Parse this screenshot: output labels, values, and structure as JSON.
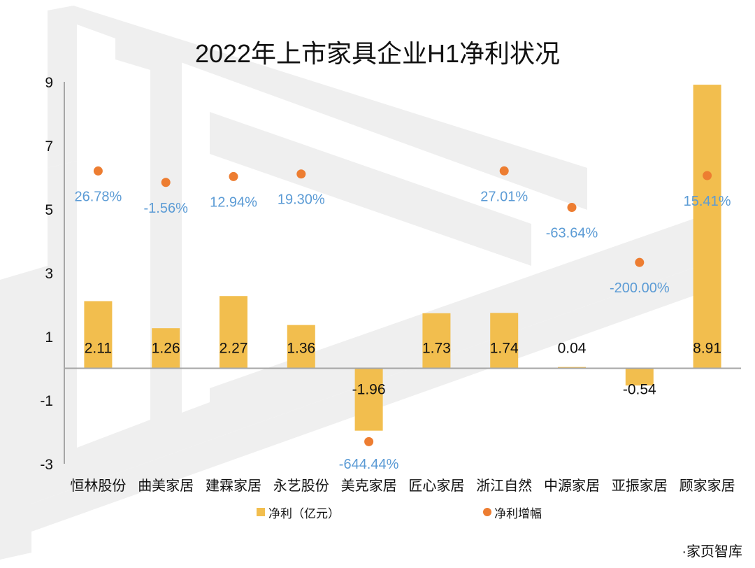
{
  "title": "2022年上市家具企业H1净利状况",
  "source": "·家页智库",
  "watermark": "家页智库",
  "colors": {
    "bar": "#F2BE4E",
    "dot": "#ED7D31",
    "pct_label": "#5B9BD5",
    "axis": "#A6A6A6",
    "watermark": "#EFEFEF"
  },
  "chart_data": {
    "type": "bar+scatter",
    "title": "2022年上市家具企业H1净利状况",
    "categories": [
      "恒林股份",
      "曲美家居",
      "建霖家居",
      "永艺股份",
      "美克家居",
      "匠心家居",
      "浙江自然",
      "中源家居",
      "亚振家居",
      "顾家家居"
    ],
    "series": [
      {
        "name": "净利（亿元）",
        "type": "bar",
        "values": [
          2.11,
          1.26,
          2.27,
          1.36,
          -1.96,
          1.73,
          1.74,
          0.04,
          -0.54,
          8.91
        ],
        "labels": [
          "2.11",
          "1.26",
          "2.27",
          "1.36",
          "-1.96",
          "1.73",
          "1.74",
          "0.04",
          "-0.54",
          "8.91"
        ]
      },
      {
        "name": "净利增幅",
        "type": "scatter",
        "axis": "secondary-hidden",
        "values": [
          26.78,
          -1.56,
          12.94,
          19.3,
          -644.44,
          null,
          27.01,
          -63.64,
          -200.0,
          15.41
        ],
        "labels": [
          "26.78%",
          "-1.56%",
          "12.94%",
          "19.30%",
          "-644.44%",
          "",
          "27.01%",
          "-63.64%",
          "-200.00%",
          "15.41%"
        ]
      }
    ],
    "ylim": [
      -3,
      9
    ],
    "yticks": [
      "9",
      "7",
      "5",
      "3",
      "1",
      "-1",
      "-3"
    ],
    "ytick_values": [
      9,
      7,
      5,
      3,
      1,
      -1,
      -3
    ],
    "grid": false,
    "legend": "bottom"
  }
}
